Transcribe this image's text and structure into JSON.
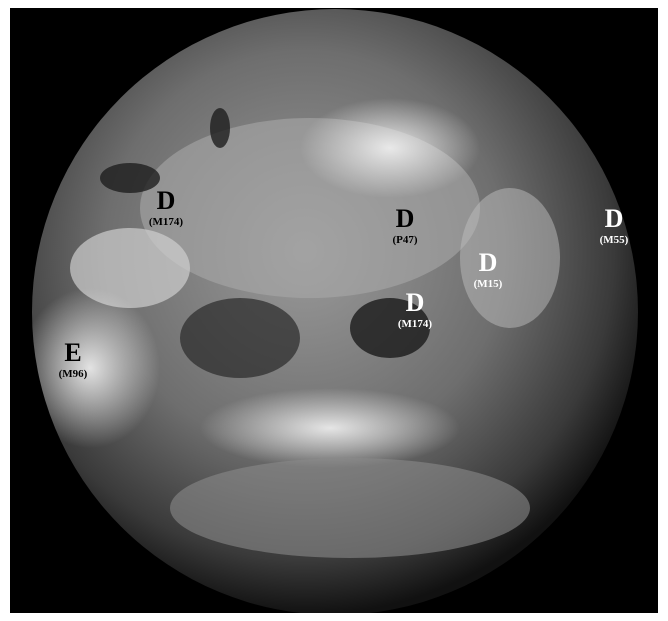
{
  "labels": [
    {
      "letter": "D",
      "code": "(M174)"
    },
    {
      "letter": "D",
      "code": "(P47)"
    },
    {
      "letter": "D",
      "code": "(M15)"
    },
    {
      "letter": "D",
      "code": "(M174)"
    },
    {
      "letter": "D",
      "code": "(M55)"
    },
    {
      "letter": "E",
      "code": "(M96)"
    }
  ]
}
